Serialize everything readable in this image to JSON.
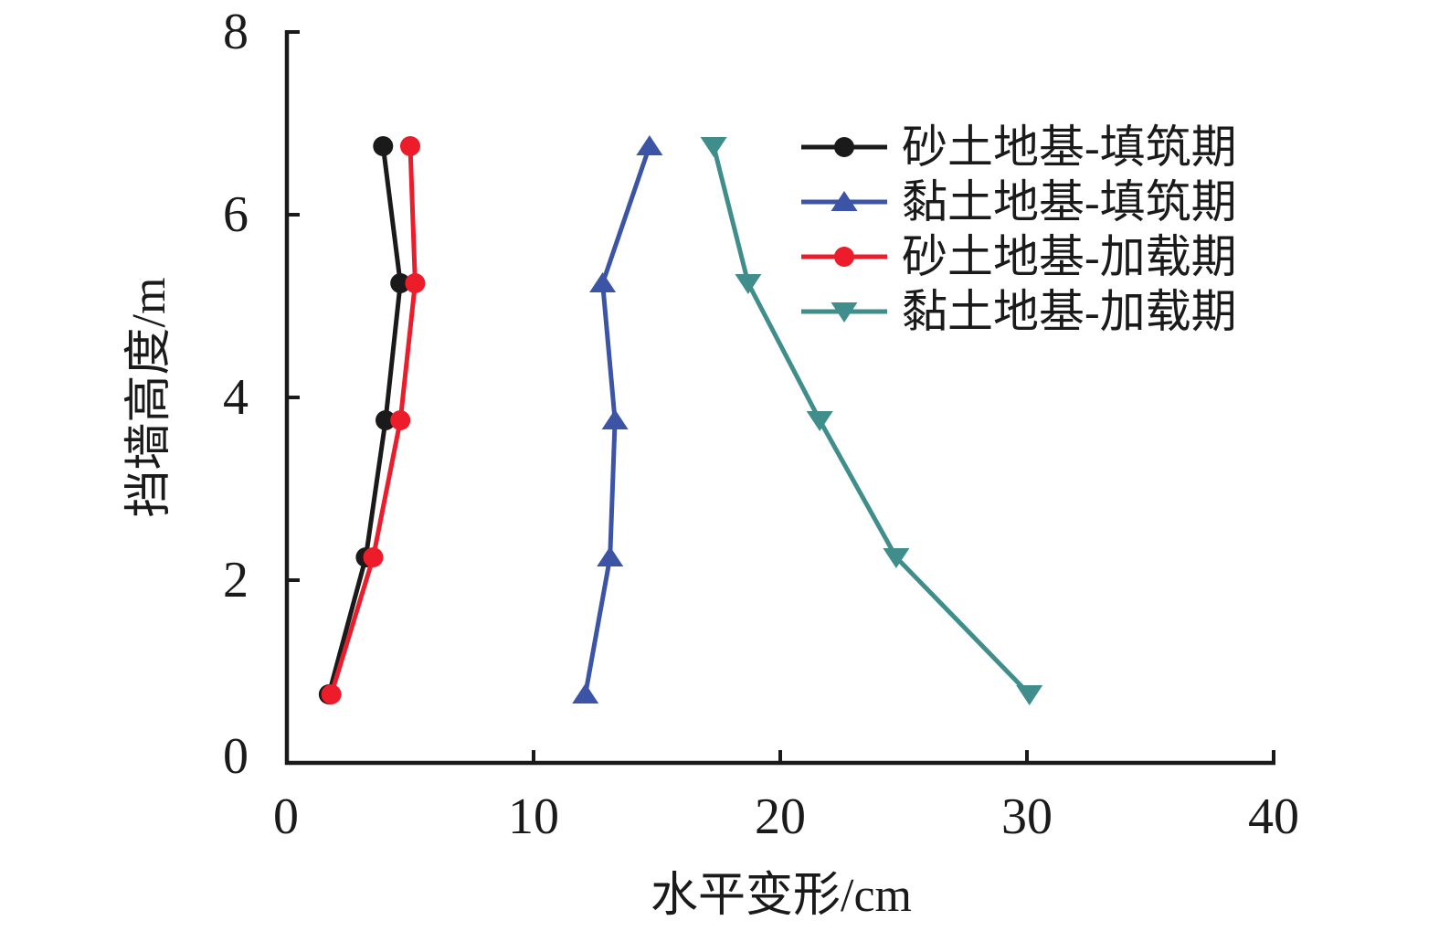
{
  "chart_data": {
    "type": "line",
    "title": "",
    "xlabel": "水平变形/cm",
    "ylabel": "挡墙高度/m",
    "xlim": [
      0,
      40
    ],
    "ylim": [
      0,
      8
    ],
    "x_ticks": [
      0,
      10,
      20,
      30,
      40
    ],
    "y_ticks": [
      0,
      2,
      4,
      6,
      8
    ],
    "x_tick_labels": [
      "0",
      "10",
      "20",
      "30",
      "40"
    ],
    "y_tick_labels": [
      "0",
      "2",
      "4",
      "6",
      "8"
    ],
    "grid": false,
    "legend_position": "upper-right-inside",
    "heights_m": [
      0.75,
      2.25,
      3.75,
      5.25,
      6.75
    ],
    "series": [
      {
        "name": "砂土地基-填筑期",
        "marker": "circle",
        "color": "#1a1a1a",
        "values_cm": [
          1.7,
          3.2,
          4.0,
          4.6,
          3.9
        ]
      },
      {
        "name": "黏土地基-填筑期",
        "marker": "triangle-up",
        "color": "#3b54a5",
        "values_cm": [
          12.1,
          13.1,
          13.3,
          12.8,
          14.7
        ]
      },
      {
        "name": "砂土地基-加载期",
        "marker": "circle",
        "color": "#ec1c2b",
        "values_cm": [
          1.8,
          3.5,
          4.6,
          5.2,
          5.0
        ]
      },
      {
        "name": "黏土地基-加载期",
        "marker": "triangle-down",
        "color": "#3f8e8b",
        "values_cm": [
          30.1,
          24.7,
          21.6,
          18.7,
          17.3
        ]
      }
    ]
  }
}
